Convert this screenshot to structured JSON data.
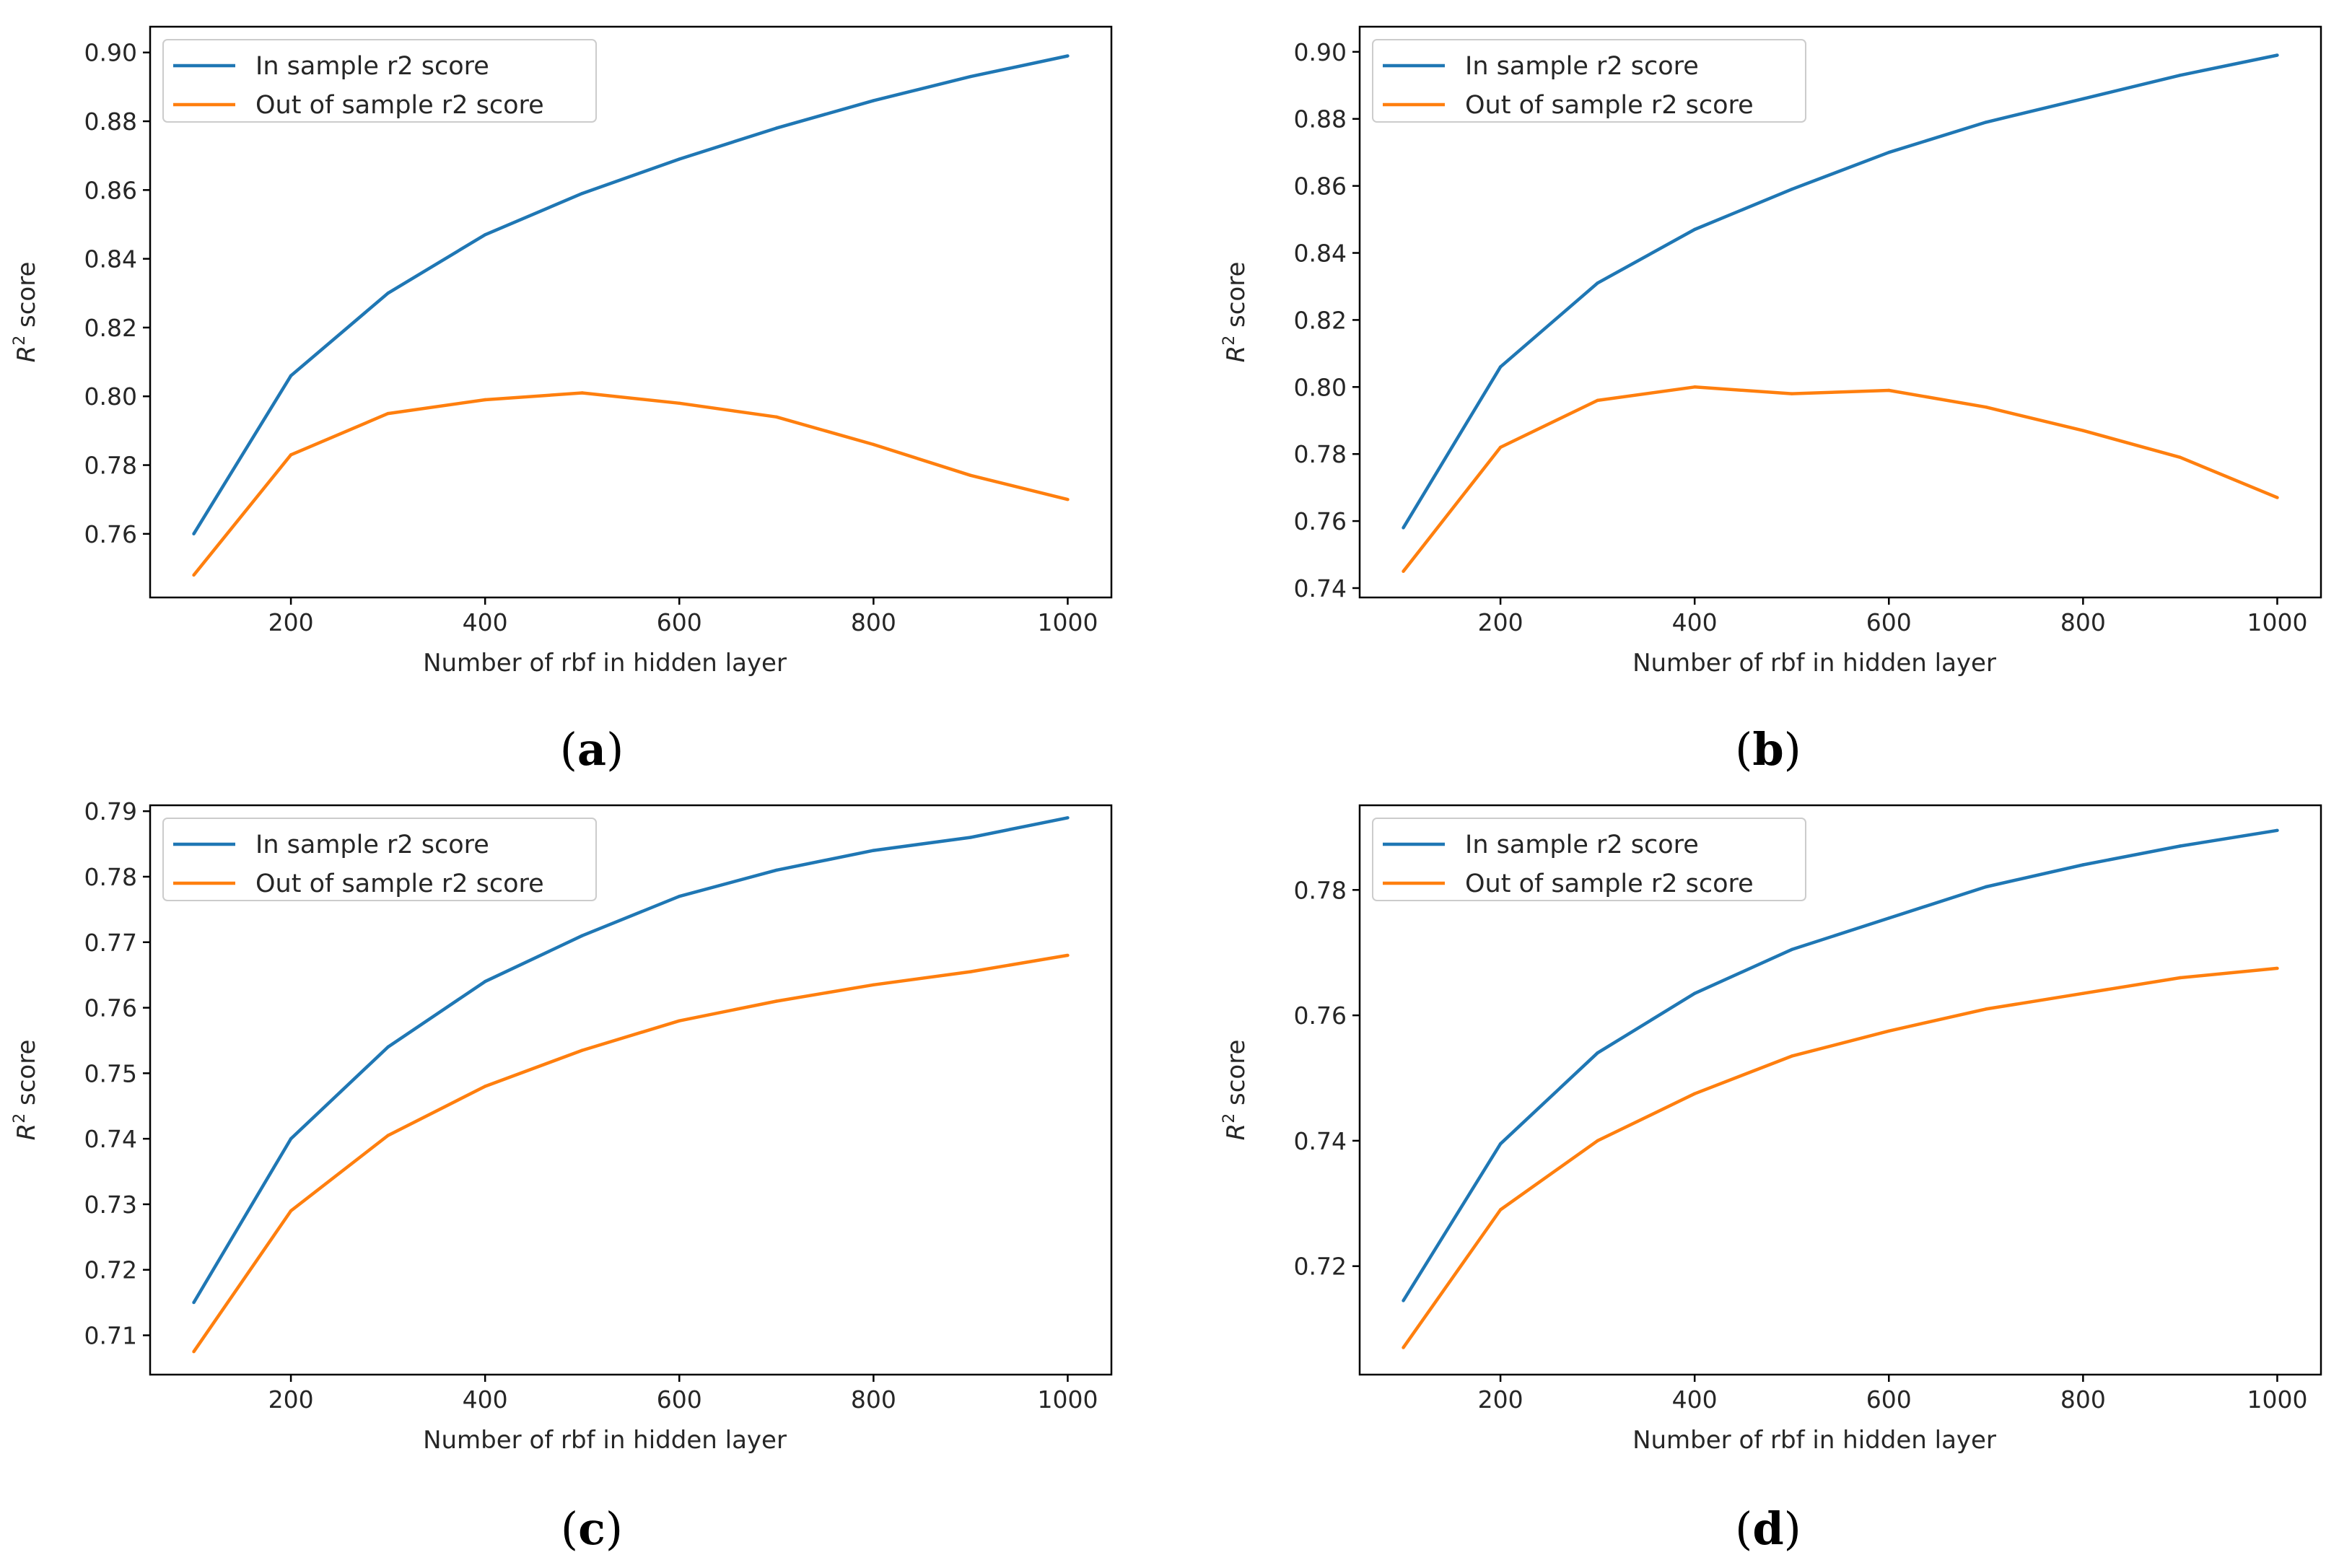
{
  "chart_data": [
    {
      "panel": "a",
      "type": "line",
      "caption_letter": "a",
      "xlabel": "Number of rbf in hidden layer",
      "ylabel_base": "R",
      "ylabel_sup": "2",
      "ylabel_rest": " score",
      "xlim": [
        55,
        1045
      ],
      "ylim": [
        0.7415,
        0.9075
      ],
      "xticks": [
        200,
        400,
        600,
        800,
        1000
      ],
      "yticks": [
        0.76,
        0.78,
        0.8,
        0.82,
        0.84,
        0.86,
        0.88,
        0.9
      ],
      "ytick_labels": [
        "0.76",
        "0.78",
        "0.80",
        "0.82",
        "0.84",
        "0.86",
        "0.88",
        "0.90"
      ],
      "x": [
        100,
        200,
        300,
        400,
        500,
        600,
        700,
        800,
        900,
        1000
      ],
      "series": [
        {
          "name": "In sample r2 score",
          "color": "#1f77b4",
          "values": [
            0.76,
            0.806,
            0.83,
            0.847,
            0.859,
            0.869,
            0.878,
            0.886,
            0.893,
            0.899
          ]
        },
        {
          "name": "Out of sample r2 score",
          "color": "#ff7f0e",
          "values": [
            0.748,
            0.783,
            0.795,
            0.799,
            0.801,
            0.798,
            0.794,
            0.786,
            0.777,
            0.77
          ]
        }
      ]
    },
    {
      "panel": "b",
      "type": "line",
      "caption_letter": "b",
      "xlabel": "Number of rbf in hidden layer",
      "ylabel_base": "R",
      "ylabel_sup": "2",
      "ylabel_rest": " score",
      "xlim": [
        55,
        1045
      ],
      "ylim": [
        0.7372,
        0.9075
      ],
      "xticks": [
        200,
        400,
        600,
        800,
        1000
      ],
      "yticks": [
        0.74,
        0.76,
        0.78,
        0.8,
        0.82,
        0.84,
        0.86,
        0.88,
        0.9
      ],
      "ytick_labels": [
        "0.74",
        "0.76",
        "0.78",
        "0.80",
        "0.82",
        "0.84",
        "0.86",
        "0.88",
        "0.90"
      ],
      "x": [
        100,
        200,
        300,
        400,
        500,
        600,
        700,
        800,
        900,
        1000
      ],
      "series": [
        {
          "name": "In sample r2 score",
          "color": "#1f77b4",
          "values": [
            0.758,
            0.806,
            0.831,
            0.847,
            0.859,
            0.87,
            0.879,
            0.886,
            0.893,
            0.899
          ]
        },
        {
          "name": "Out of sample r2 score",
          "color": "#ff7f0e",
          "values": [
            0.745,
            0.782,
            0.796,
            0.8,
            0.798,
            0.799,
            0.794,
            0.787,
            0.779,
            0.767
          ]
        }
      ]
    },
    {
      "panel": "c",
      "type": "line",
      "caption_letter": "c",
      "xlabel": "Number of rbf in hidden layer",
      "ylabel_base": "R",
      "ylabel_sup": "2",
      "ylabel_rest": " score",
      "xlim": [
        55,
        1045
      ],
      "ylim": [
        0.704,
        0.7909
      ],
      "xticks": [
        200,
        400,
        600,
        800,
        1000
      ],
      "yticks": [
        0.71,
        0.72,
        0.73,
        0.74,
        0.75,
        0.76,
        0.77,
        0.78,
        0.79
      ],
      "ytick_labels": [
        "0.71",
        "0.72",
        "0.73",
        "0.74",
        "0.75",
        "0.76",
        "0.77",
        "0.78",
        "0.79"
      ],
      "x": [
        100,
        200,
        300,
        400,
        500,
        600,
        700,
        800,
        900,
        1000
      ],
      "series": [
        {
          "name": "In sample r2 score",
          "color": "#1f77b4",
          "values": [
            0.715,
            0.74,
            0.754,
            0.764,
            0.771,
            0.777,
            0.781,
            0.784,
            0.786,
            0.789
          ]
        },
        {
          "name": "Out of sample r2 score",
          "color": "#ff7f0e",
          "values": [
            0.7075,
            0.729,
            0.7405,
            0.748,
            0.7535,
            0.758,
            0.761,
            0.7635,
            0.7655,
            0.768
          ]
        }
      ]
    },
    {
      "panel": "d",
      "type": "line",
      "caption_letter": "d",
      "xlabel": "Number of rbf in hidden layer",
      "ylabel_base": "R",
      "ylabel_sup": "2",
      "ylabel_rest": " score",
      "xlim": [
        55,
        1045
      ],
      "ylim": [
        0.7027,
        0.7935
      ],
      "xticks": [
        200,
        400,
        600,
        800,
        1000
      ],
      "yticks": [
        0.72,
        0.74,
        0.76,
        0.78
      ],
      "ytick_labels": [
        "0.72",
        "0.74",
        "0.76",
        "0.78"
      ],
      "x": [
        100,
        200,
        300,
        400,
        500,
        600,
        700,
        800,
        900,
        1000
      ],
      "series": [
        {
          "name": "In sample r2 score",
          "color": "#1f77b4",
          "values": [
            0.7145,
            0.7395,
            0.754,
            0.7635,
            0.7705,
            0.7755,
            0.7805,
            0.784,
            0.787,
            0.7895
          ]
        },
        {
          "name": "Out of sample r2 score",
          "color": "#ff7f0e",
          "values": [
            0.707,
            0.729,
            0.74,
            0.7475,
            0.7535,
            0.7575,
            0.761,
            0.7635,
            0.766,
            0.7675
          ]
        }
      ]
    }
  ]
}
